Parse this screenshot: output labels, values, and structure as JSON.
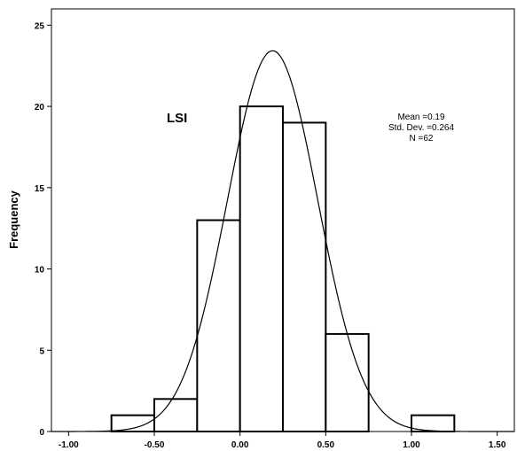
{
  "chart_data": {
    "type": "bar",
    "subtype": "histogram",
    "panel_label": "LSI",
    "xlabel": "",
    "ylabel": "Frequency",
    "bin_width": 0.25,
    "bins": [
      {
        "start": -0.75,
        "end": -0.5,
        "count": 1
      },
      {
        "start": -0.5,
        "end": -0.25,
        "count": 2
      },
      {
        "start": -0.25,
        "end": 0.0,
        "count": 13
      },
      {
        "start": 0.0,
        "end": 0.25,
        "count": 20
      },
      {
        "start": 0.25,
        "end": 0.5,
        "count": 19
      },
      {
        "start": 0.5,
        "end": 0.75,
        "count": 6
      },
      {
        "start": 0.75,
        "end": 1.0,
        "count": 0
      },
      {
        "start": 1.0,
        "end": 1.25,
        "count": 1
      }
    ],
    "xlim": [
      -1.1,
      1.6
    ],
    "ylim": [
      0,
      26
    ],
    "x_ticks": [
      -1.0,
      -0.5,
      0.0,
      0.5,
      1.0,
      1.5
    ],
    "x_tick_labels": [
      "-1.00",
      "-0.50",
      "0.00",
      "0.50",
      "1.00",
      "1.50"
    ],
    "y_ticks": [
      0,
      5,
      10,
      15,
      20,
      25
    ],
    "y_tick_labels": [
      "0",
      "5",
      "10",
      "15",
      "20",
      "25"
    ],
    "normal_curve": {
      "mean": 0.19,
      "std": 0.264,
      "n": 62
    },
    "stats_text": [
      "Mean =0.19",
      "Std. Dev. =0.264",
      "N =62"
    ],
    "grid": false,
    "legend": "none",
    "colors": {
      "bar_fill": "#ffffff",
      "bar_stroke": "#000000",
      "curve": "#000000"
    }
  }
}
